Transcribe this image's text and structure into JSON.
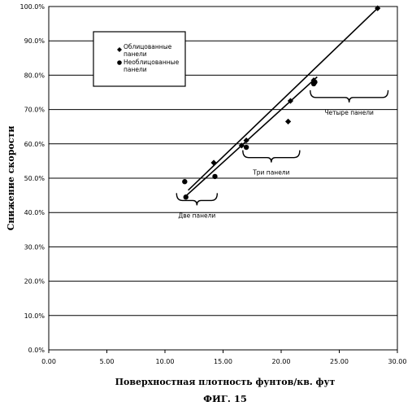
{
  "chart_data": {
    "type": "scatter",
    "xlabel": "Поверхностная плотность фунтов/кв. фут",
    "ylabel": "Снижение скорости",
    "figure_caption": "ФИГ. 15",
    "xlim": [
      0,
      30
    ],
    "ylim": [
      0,
      100
    ],
    "x_ticks": [
      "0.00",
      "5.00",
      "10.00",
      "15.00",
      "20.00",
      "25.00",
      "30.00"
    ],
    "y_ticks": [
      "0.0%",
      "10.0%",
      "20.0%",
      "30.0%",
      "40.0%",
      "50.0%",
      "60.0%",
      "70.0%",
      "80.0%",
      "90.0%",
      "100.0%"
    ],
    "grid": "horizontal",
    "legend_position": "top-left",
    "series": [
      {
        "name": "Облицованные панели",
        "marker": "diamond",
        "x": [
          14.2,
          16.6,
          17.0,
          20.6,
          20.8,
          22.8,
          28.3
        ],
        "y": [
          54.5,
          59.5,
          61.0,
          66.5,
          72.5,
          78.5,
          99.5
        ]
      },
      {
        "name": "Необлицованные панели",
        "marker": "circle",
        "x": [
          11.7,
          11.8,
          14.3,
          17.0,
          22.8,
          22.9
        ],
        "y": [
          49.0,
          44.5,
          50.5,
          59.0,
          77.5,
          78.0
        ]
      }
    ],
    "trendlines": [
      {
        "x": [
          12.0,
          28.3
        ],
        "y": [
          46.5,
          99.5
        ]
      },
      {
        "x": [
          11.7,
          23.1
        ],
        "y": [
          44.5,
          79.5
        ]
      }
    ],
    "annotations": [
      {
        "text": "Две панели",
        "bracket_x": [
          11.0,
          14.5
        ],
        "bracket_y": 43.5
      },
      {
        "text": "Три панели",
        "bracket_x": [
          16.7,
          21.6
        ],
        "bracket_y": 56.0
      },
      {
        "text": "Четыре панели",
        "bracket_x": [
          22.5,
          29.2
        ],
        "bracket_y": 73.5
      }
    ]
  }
}
